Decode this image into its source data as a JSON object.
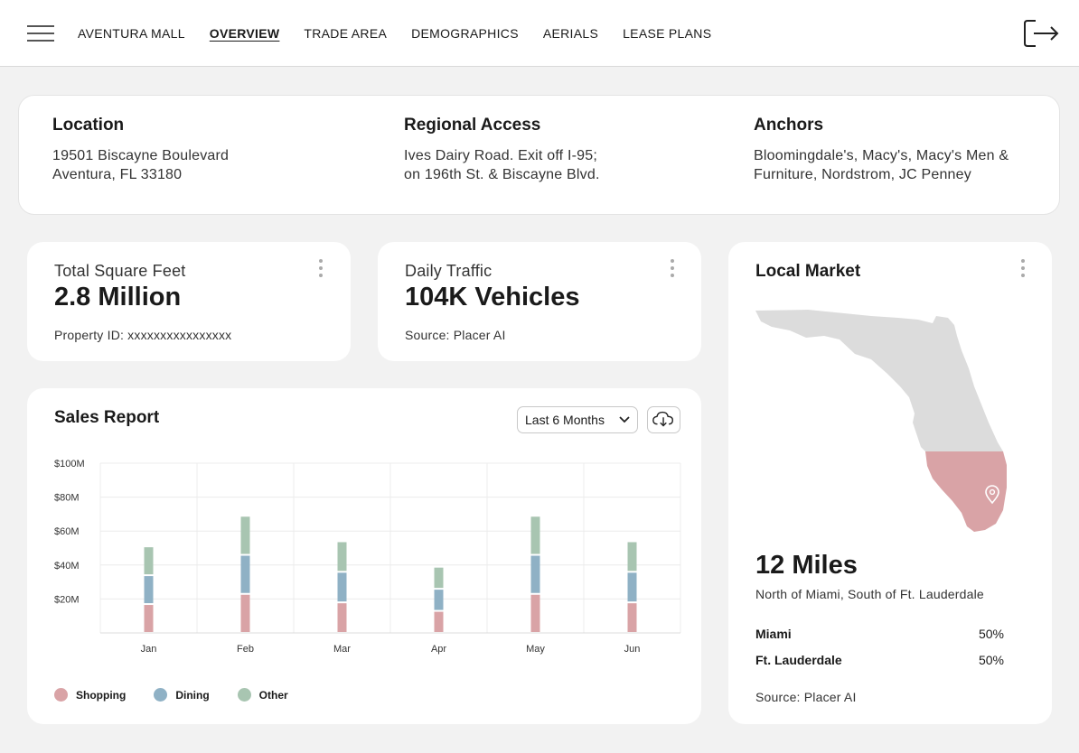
{
  "nav": {
    "items": [
      {
        "label": "AVENTURA MALL",
        "active": false
      },
      {
        "label": "OVERVIEW",
        "active": true
      },
      {
        "label": "TRADE AREA",
        "active": false
      },
      {
        "label": "DEMOGRAPHICS",
        "active": false
      },
      {
        "label": "AERIALS",
        "active": false
      },
      {
        "label": "LEASE PLANS",
        "active": false
      }
    ],
    "menu_icon": "hamburger-icon",
    "logout_icon": "logout-icon"
  },
  "info": {
    "location": {
      "title": "Location",
      "line1": "19501 Biscayne Boulevard",
      "line2": "Aventura, FL 33180"
    },
    "access": {
      "title": "Regional Access",
      "line1": "Ives Dairy Road. Exit off I-95;",
      "line2": "on 196th St. & Biscayne Blvd."
    },
    "anchors": {
      "title": "Anchors",
      "line1": "Bloomingdale's, Macy's, Macy's Men &",
      "line2": "Furniture, Nordstrom, JC Penney"
    }
  },
  "stats": {
    "sqft": {
      "label": "Total Square Feet",
      "value": "2.8 Million",
      "note": "Property ID: xxxxxxxxxxxxxxxx"
    },
    "traffic": {
      "label": "Daily Traffic",
      "value": "104K Vehicles",
      "note": "Source: Placer AI"
    }
  },
  "sales": {
    "title": "Sales Report",
    "range_label": "Last 6 Months",
    "download_icon": "cloud-download-icon"
  },
  "chart_data": {
    "type": "bar",
    "stacked": true,
    "categories": [
      "Jan",
      "Feb",
      "Mar",
      "Apr",
      "May",
      "Jun"
    ],
    "series": [
      {
        "name": "Shopping",
        "color": "#d9a3a6",
        "values": [
          17,
          23,
          18,
          13,
          23,
          18
        ]
      },
      {
        "name": "Dining",
        "color": "#8fb1c5",
        "values": [
          17,
          23,
          18,
          13,
          23,
          18
        ]
      },
      {
        "name": "Other",
        "color": "#a8c5b1",
        "values": [
          17,
          23,
          18,
          13,
          23,
          18
        ]
      }
    ],
    "yticks": [
      "$20M",
      "$40M",
      "$60M",
      "$80M",
      "$100M"
    ],
    "ylim": [
      0,
      100
    ],
    "grid": true,
    "legend": "bottom-left"
  },
  "market": {
    "title": "Local Market",
    "distance": "12 Miles",
    "subtitle": "North of Miami, South of  Ft. Lauderdale",
    "rows": [
      {
        "city": "Miami",
        "pct": "50%"
      },
      {
        "city": "Ft. Lauderdale",
        "pct": "50%"
      }
    ],
    "source": "Source: Placer AI",
    "colors": {
      "state": "#dcdcdc",
      "highlight": "#d9a3a6"
    },
    "pin_icon": "location-pin-icon"
  }
}
